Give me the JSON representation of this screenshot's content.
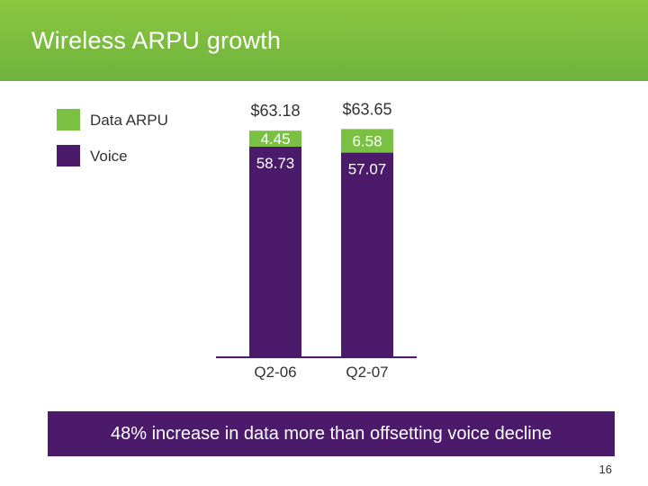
{
  "header": {
    "title": "Wireless ARPU growth"
  },
  "colors": {
    "data": "#7ac143",
    "voice": "#4b1a6b",
    "axis": "#4b1a6b"
  },
  "chart_data": {
    "type": "bar",
    "stacked": true,
    "title": "Wireless ARPU growth",
    "categories": [
      "Q2-06",
      "Q2-07"
    ],
    "series": [
      {
        "name": "Voice",
        "values": [
          58.73,
          57.07
        ],
        "labels": [
          "58.73",
          "57.07"
        ]
      },
      {
        "name": "Data ARPU",
        "values": [
          4.45,
          6.58
        ],
        "labels": [
          "4.45",
          "6.58"
        ]
      }
    ],
    "totals": [
      63.18,
      63.65
    ],
    "total_labels": [
      "$63.18",
      "$63.65"
    ],
    "legend": [
      "Data ARPU",
      "Voice"
    ],
    "ylim": [
      0,
      68
    ]
  },
  "callout": {
    "text": "48% increase in data more than offsetting voice decline"
  },
  "page": {
    "number": "16"
  }
}
